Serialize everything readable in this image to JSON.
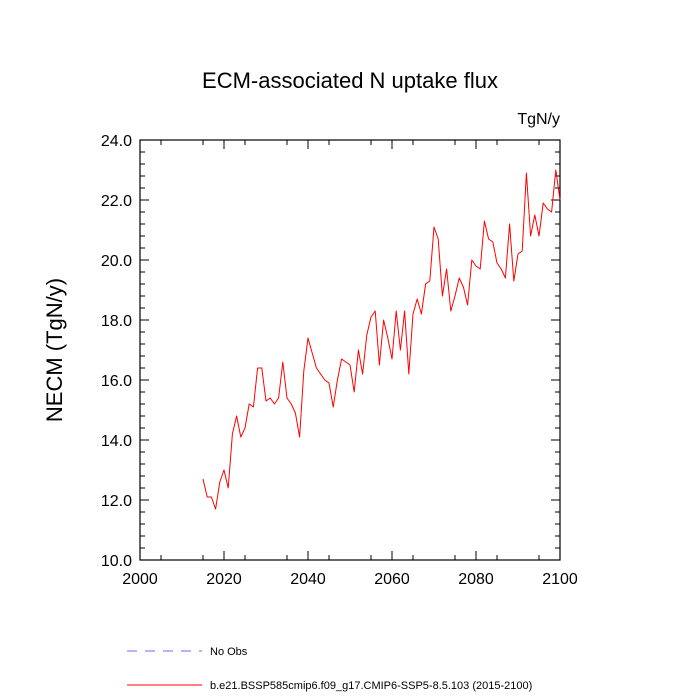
{
  "chart_data": {
    "type": "line",
    "title": "ECM-associated N uptake flux",
    "units": "TgN/y",
    "xlabel": "",
    "ylabel": "NECM  (TgN/y)",
    "xlim": [
      2000,
      2100
    ],
    "ylim": [
      10.0,
      24.0
    ],
    "x_ticks": [
      2000,
      2020,
      2040,
      2060,
      2080,
      2100
    ],
    "x_tick_labels": [
      "2000",
      "2020",
      "2040",
      "2060",
      "2080",
      "2100"
    ],
    "y_ticks": [
      10,
      12,
      14,
      16,
      18,
      20,
      22,
      24
    ],
    "y_tick_labels": [
      "10.0",
      "12.0",
      "14.0",
      "16.0",
      "18.0",
      "20.0",
      "22.0",
      "24.0"
    ],
    "grid": false,
    "legend_position": "bottom",
    "legend": [
      {
        "label": "No Obs",
        "color": "#6b6bff",
        "style": "dashed"
      },
      {
        "label": "b.e21.BSSP585cmip6.f09_g17.CMIP6-SSP5-8.5.103 (2015-2100)",
        "color": "#ff0000",
        "style": "solid"
      }
    ],
    "series": [
      {
        "name": "b.e21.BSSP585cmip6.f09_g17.CMIP6-SSP5-8.5.103 (2015-2100)",
        "color": "#ff0000",
        "x": [
          2015,
          2016,
          2017,
          2018,
          2019,
          2020,
          2021,
          2022,
          2023,
          2024,
          2025,
          2026,
          2027,
          2028,
          2029,
          2030,
          2031,
          2032,
          2033,
          2034,
          2035,
          2036,
          2037,
          2038,
          2039,
          2040,
          2041,
          2042,
          2043,
          2044,
          2045,
          2046,
          2047,
          2048,
          2049,
          2050,
          2051,
          2052,
          2053,
          2054,
          2055,
          2056,
          2057,
          2058,
          2059,
          2060,
          2061,
          2062,
          2063,
          2064,
          2065,
          2066,
          2067,
          2068,
          2069,
          2070,
          2071,
          2072,
          2073,
          2074,
          2075,
          2076,
          2077,
          2078,
          2079,
          2080,
          2081,
          2082,
          2083,
          2084,
          2085,
          2086,
          2087,
          2088,
          2089,
          2090,
          2091,
          2092,
          2093,
          2094,
          2095,
          2096,
          2097,
          2098,
          2099,
          2100
        ],
        "values": [
          12.7,
          12.1,
          12.1,
          11.7,
          12.6,
          13.0,
          12.4,
          14.2,
          14.8,
          14.1,
          14.4,
          15.2,
          15.1,
          16.4,
          16.4,
          15.3,
          15.4,
          15.2,
          15.4,
          16.6,
          15.4,
          15.2,
          14.9,
          14.1,
          16.3,
          17.4,
          16.9,
          16.4,
          16.2,
          16.0,
          15.9,
          15.1,
          16.0,
          16.7,
          16.6,
          16.5,
          15.6,
          17.0,
          16.2,
          17.5,
          18.1,
          18.3,
          16.5,
          18.0,
          17.4,
          16.7,
          18.3,
          17.0,
          18.3,
          16.2,
          18.2,
          18.7,
          18.2,
          19.2,
          19.3,
          21.1,
          20.7,
          18.8,
          19.7,
          18.3,
          18.8,
          19.4,
          19.1,
          18.5,
          20.0,
          19.8,
          19.7,
          21.3,
          20.7,
          20.6,
          19.9,
          19.7,
          19.4,
          21.2,
          19.3,
          20.2,
          20.3,
          22.9,
          20.8,
          21.5,
          20.8,
          21.9,
          21.7,
          21.6,
          23.0,
          22.0
        ]
      }
    ]
  }
}
